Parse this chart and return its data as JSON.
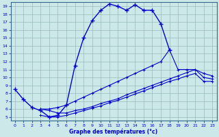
{
  "xlabel": "Graphe des températures (°c)",
  "background_color": "#cce8e8",
  "line_color": "#0000cc",
  "grid_color": "#99bbbb",
  "spine_color": "#336688",
  "xlim": [
    -0.5,
    23.5
  ],
  "ylim": [
    4.5,
    19.5
  ],
  "xticks": [
    0,
    1,
    2,
    3,
    4,
    5,
    6,
    7,
    8,
    9,
    10,
    11,
    12,
    13,
    14,
    15,
    16,
    17,
    18,
    19,
    20,
    21,
    22,
    23
  ],
  "yticks": [
    5,
    6,
    7,
    8,
    9,
    10,
    11,
    12,
    13,
    14,
    15,
    16,
    17,
    18,
    19
  ],
  "curve_main": [
    [
      0,
      8.5
    ],
    [
      1,
      7.2
    ],
    [
      2,
      6.2
    ],
    [
      3,
      5.8
    ],
    [
      4,
      5.0
    ],
    [
      5,
      5.2
    ],
    [
      6,
      6.5
    ],
    [
      7,
      11.5
    ],
    [
      8,
      15.0
    ],
    [
      9,
      17.2
    ],
    [
      10,
      18.5
    ],
    [
      11,
      19.3
    ],
    [
      12,
      19.0
    ],
    [
      13,
      18.5
    ],
    [
      14,
      19.2
    ],
    [
      15,
      18.5
    ],
    [
      16,
      18.5
    ],
    [
      17,
      16.8
    ],
    [
      18,
      13.5
    ]
  ],
  "curve_mid": [
    [
      3,
      6.0
    ],
    [
      4,
      6.0
    ],
    [
      5,
      6.2
    ],
    [
      6,
      6.5
    ],
    [
      7,
      7.0
    ],
    [
      8,
      7.5
    ],
    [
      9,
      8.0
    ],
    [
      10,
      8.5
    ],
    [
      11,
      9.0
    ],
    [
      12,
      9.5
    ],
    [
      13,
      10.0
    ],
    [
      14,
      10.5
    ],
    [
      15,
      11.0
    ],
    [
      16,
      11.5
    ],
    [
      17,
      12.0
    ],
    [
      18,
      13.5
    ],
    [
      19,
      11.0
    ],
    [
      20,
      11.0
    ],
    [
      21,
      11.0
    ],
    [
      22,
      10.5
    ],
    [
      23,
      10.2
    ]
  ],
  "curve_low1": [
    [
      3,
      6.0
    ],
    [
      4,
      5.8
    ],
    [
      5,
      5.5
    ],
    [
      6,
      5.5
    ],
    [
      7,
      5.8
    ],
    [
      8,
      6.0
    ],
    [
      9,
      6.3
    ],
    [
      10,
      6.7
    ],
    [
      11,
      7.0
    ],
    [
      12,
      7.3
    ],
    [
      13,
      7.8
    ],
    [
      14,
      8.2
    ],
    [
      15,
      8.6
    ],
    [
      16,
      9.0
    ],
    [
      17,
      9.4
    ],
    [
      18,
      9.8
    ],
    [
      19,
      10.2
    ],
    [
      20,
      10.6
    ],
    [
      21,
      11.0
    ],
    [
      22,
      10.0
    ],
    [
      23,
      9.8
    ]
  ],
  "curve_low2": [
    [
      3,
      5.2
    ],
    [
      4,
      5.0
    ],
    [
      5,
      5.0
    ],
    [
      6,
      5.2
    ],
    [
      7,
      5.5
    ],
    [
      8,
      5.8
    ],
    [
      9,
      6.1
    ],
    [
      10,
      6.4
    ],
    [
      11,
      6.8
    ],
    [
      12,
      7.1
    ],
    [
      13,
      7.5
    ],
    [
      14,
      7.9
    ],
    [
      15,
      8.3
    ],
    [
      16,
      8.7
    ],
    [
      17,
      9.1
    ],
    [
      18,
      9.5
    ],
    [
      19,
      9.8
    ],
    [
      20,
      10.2
    ],
    [
      21,
      10.5
    ],
    [
      22,
      9.5
    ],
    [
      23,
      9.5
    ]
  ]
}
